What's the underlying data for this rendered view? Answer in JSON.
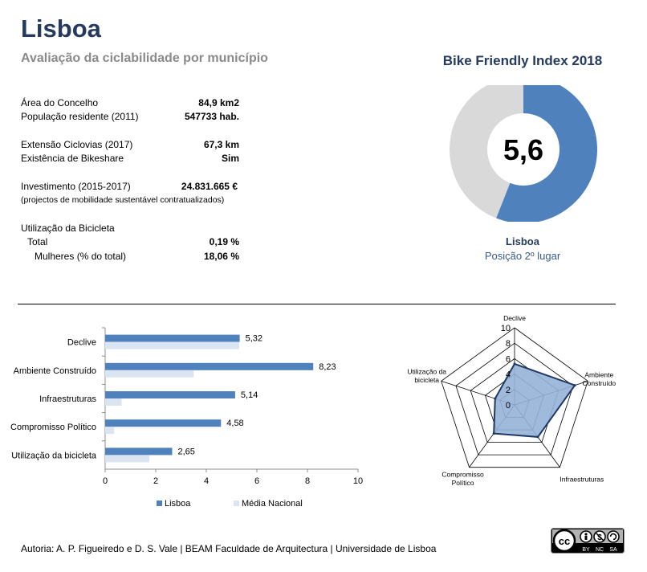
{
  "header": {
    "title": "Lisboa",
    "subtitle": "Avaliação da ciclabilidade por município"
  },
  "stats": {
    "area": {
      "label": "Área do Concelho",
      "value": "84,9 km2"
    },
    "population": {
      "label": "População residente (2011)",
      "value": "547733 hab."
    },
    "cycleways": {
      "label": "Extensão Ciclovias (2017)",
      "value": "67,3 km"
    },
    "bikeshare": {
      "label": "Existência de Bikeshare",
      "value": "Sim"
    },
    "investment": {
      "label": "Investimento (2015-2017)",
      "value": "24.831.665 €"
    },
    "investment_note": "(projectos de mobilidade sustentável contratualizados)",
    "usage_heading": "Utilização da Bicicleta",
    "usage_total": {
      "label": "Total",
      "value": "0,19 %"
    },
    "usage_women": {
      "label": "Mulheres (% do total)",
      "value": "18,06 %"
    }
  },
  "bfi": {
    "title": "Bike Friendly Index 2018",
    "score": "5,6",
    "score_value": 5.6,
    "max": 10,
    "city": "Lisboa",
    "position": "Posição 2º lugar",
    "fill_color": "#4f81bd",
    "rest_color": "#d9d9d9"
  },
  "chart_data": [
    {
      "type": "bar",
      "orientation": "horizontal",
      "categories": [
        "Declive",
        "Ambiente Construído",
        "Infraestruturas",
        "Compromisso Político",
        "Utilização da bicicleta"
      ],
      "series": [
        {
          "name": "Lisboa",
          "values": [
            5.32,
            8.23,
            5.14,
            4.58,
            2.65
          ],
          "color": "#4f81bd"
        },
        {
          "name": "Média Nacional",
          "values": [
            5.3,
            3.5,
            0.65,
            0.35,
            1.75
          ],
          "color": "#dbe5f1"
        }
      ],
      "data_labels": [
        "5,32",
        "8,23",
        "5,14",
        "4,58",
        "2,65"
      ],
      "x_ticks": [
        "0",
        "2",
        "4",
        "6",
        "8",
        "10"
      ],
      "xlim": [
        0,
        10
      ],
      "legend_position": "bottom"
    },
    {
      "type": "radar",
      "axes": [
        "Declive",
        "Ambiente Construído",
        "Infraestruturas",
        "Compromisso Político",
        "Utilização da bicicleta"
      ],
      "axis_labels": [
        "Declive",
        "Ambiente\nConstruído",
        "Infraestruturas",
        "Compromisso\nPolítico",
        "Utilização da\nbicicleta"
      ],
      "values": [
        5.32,
        8.23,
        5.14,
        4.58,
        2.65
      ],
      "r_ticks": [
        "0",
        "2",
        "4",
        "6",
        "8",
        "10"
      ],
      "rlim": [
        0,
        10
      ],
      "fill_color": "#95b3d7",
      "line_color": "#1f3864"
    }
  ],
  "footer": {
    "credit": "Autoria: A. P. Figueiredo e D. S. Vale | BEAM Faculdade de Arquitectura | Universidade de Lisboa"
  },
  "license": {
    "icon": "creative-commons-by-nc-sa-icon",
    "labels": [
      "BY",
      "NC",
      "SA"
    ]
  }
}
